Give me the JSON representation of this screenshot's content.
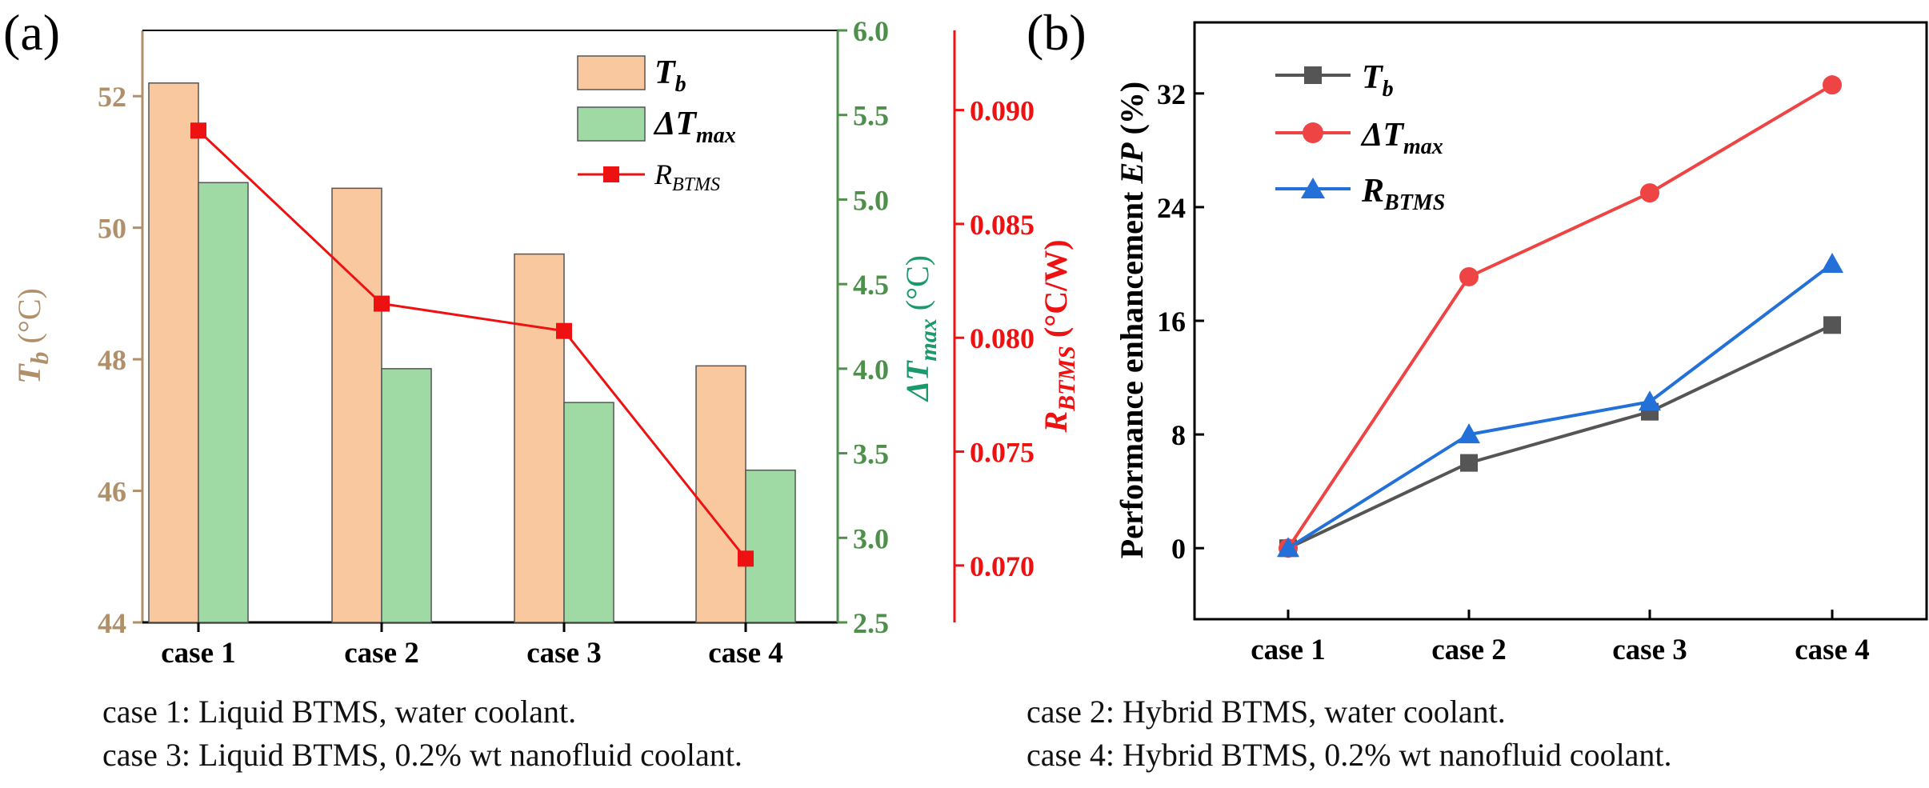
{
  "figure": {
    "panel_a_label": "(a)",
    "panel_b_label": "(b)",
    "captions": [
      "case 1: Liquid BTMS, water coolant.",
      "case 2: Hybrid BTMS, water coolant.",
      "case 3: Liquid BTMS, 0.2% wt nanofluid coolant.",
      "case 4: Hybrid BTMS, 0.2% wt nanofluid coolant."
    ],
    "colors": {
      "tb_bar": "#f9c89f",
      "dt_bar": "#9fd9a4",
      "rbtms": "#ee1111",
      "tb_axis": "#b0906a",
      "dt_axis": "#4f8f4c",
      "ep_tb": "#555555",
      "ep_dt": "#ee4444",
      "ep_rb": "#2270d8"
    }
  },
  "chart_data": [
    {
      "type": "bar",
      "panel": "(a)",
      "categories": [
        "case 1",
        "case 2",
        "case 3",
        "case 4"
      ],
      "series": [
        {
          "name": "Tb",
          "axis": "left",
          "values": [
            52.2,
            50.6,
            49.6,
            47.9
          ]
        },
        {
          "name": "ΔTmax",
          "axis": "right1",
          "values": [
            5.1,
            4.0,
            3.8,
            3.4
          ]
        },
        {
          "name": "RBTMS",
          "axis": "right2",
          "type": "line",
          "values": [
            0.0891,
            0.0815,
            0.0803,
            0.0703
          ]
        }
      ],
      "axes": {
        "left": {
          "label_main": "T",
          "label_sub": "b",
          "label_unit": " (°C)",
          "ylim": [
            44,
            53.0
          ],
          "ticks": [
            "44",
            "46",
            "48",
            "50",
            "52"
          ]
        },
        "right1": {
          "label_main": "ΔT",
          "label_sub": "max",
          "label_unit": " (°C)",
          "ylim": [
            2.5,
            6.0
          ],
          "ticks": [
            "2.5",
            "3.0",
            "3.5",
            "4.0",
            "4.5",
            "5.0",
            "5.5",
            "6.0"
          ]
        },
        "right2": {
          "label_main": "R",
          "label_sub": "BTMS",
          "label_unit": " (°C/W)",
          "ylim": [
            0.0675,
            0.0935
          ],
          "ticks": [
            "0.070",
            "0.075",
            "0.080",
            "0.085",
            "0.090"
          ]
        }
      },
      "legend": [
        {
          "main": "T",
          "sub": "b"
        },
        {
          "main": "ΔT",
          "sub": "max"
        },
        {
          "main": "R",
          "sub": "BTMS"
        }
      ],
      "legend_position": "top-right"
    },
    {
      "type": "line",
      "panel": "(b)",
      "categories": [
        "case 1",
        "case 2",
        "case 3",
        "case 4"
      ],
      "series": [
        {
          "name": "Tb",
          "main": "T",
          "sub": "b",
          "marker": "square",
          "values": [
            0,
            6.0,
            9.6,
            15.7
          ]
        },
        {
          "name": "ΔTmax",
          "main": "ΔT",
          "sub": "max",
          "marker": "circle",
          "values": [
            0,
            19.1,
            25.0,
            32.6
          ]
        },
        {
          "name": "RBTMS",
          "main": "R",
          "sub": "BTMS",
          "marker": "triangle",
          "values": [
            0,
            8.0,
            10.3,
            20.0
          ]
        }
      ],
      "ylabel_main": "Performance enhancement ",
      "ylabel_ital": "EP",
      "ylabel_unit": " (%)",
      "ylim": [
        -5,
        37
      ],
      "yticks": [
        "0",
        "8",
        "16",
        "24",
        "32"
      ],
      "legend_position": "top-left"
    }
  ]
}
